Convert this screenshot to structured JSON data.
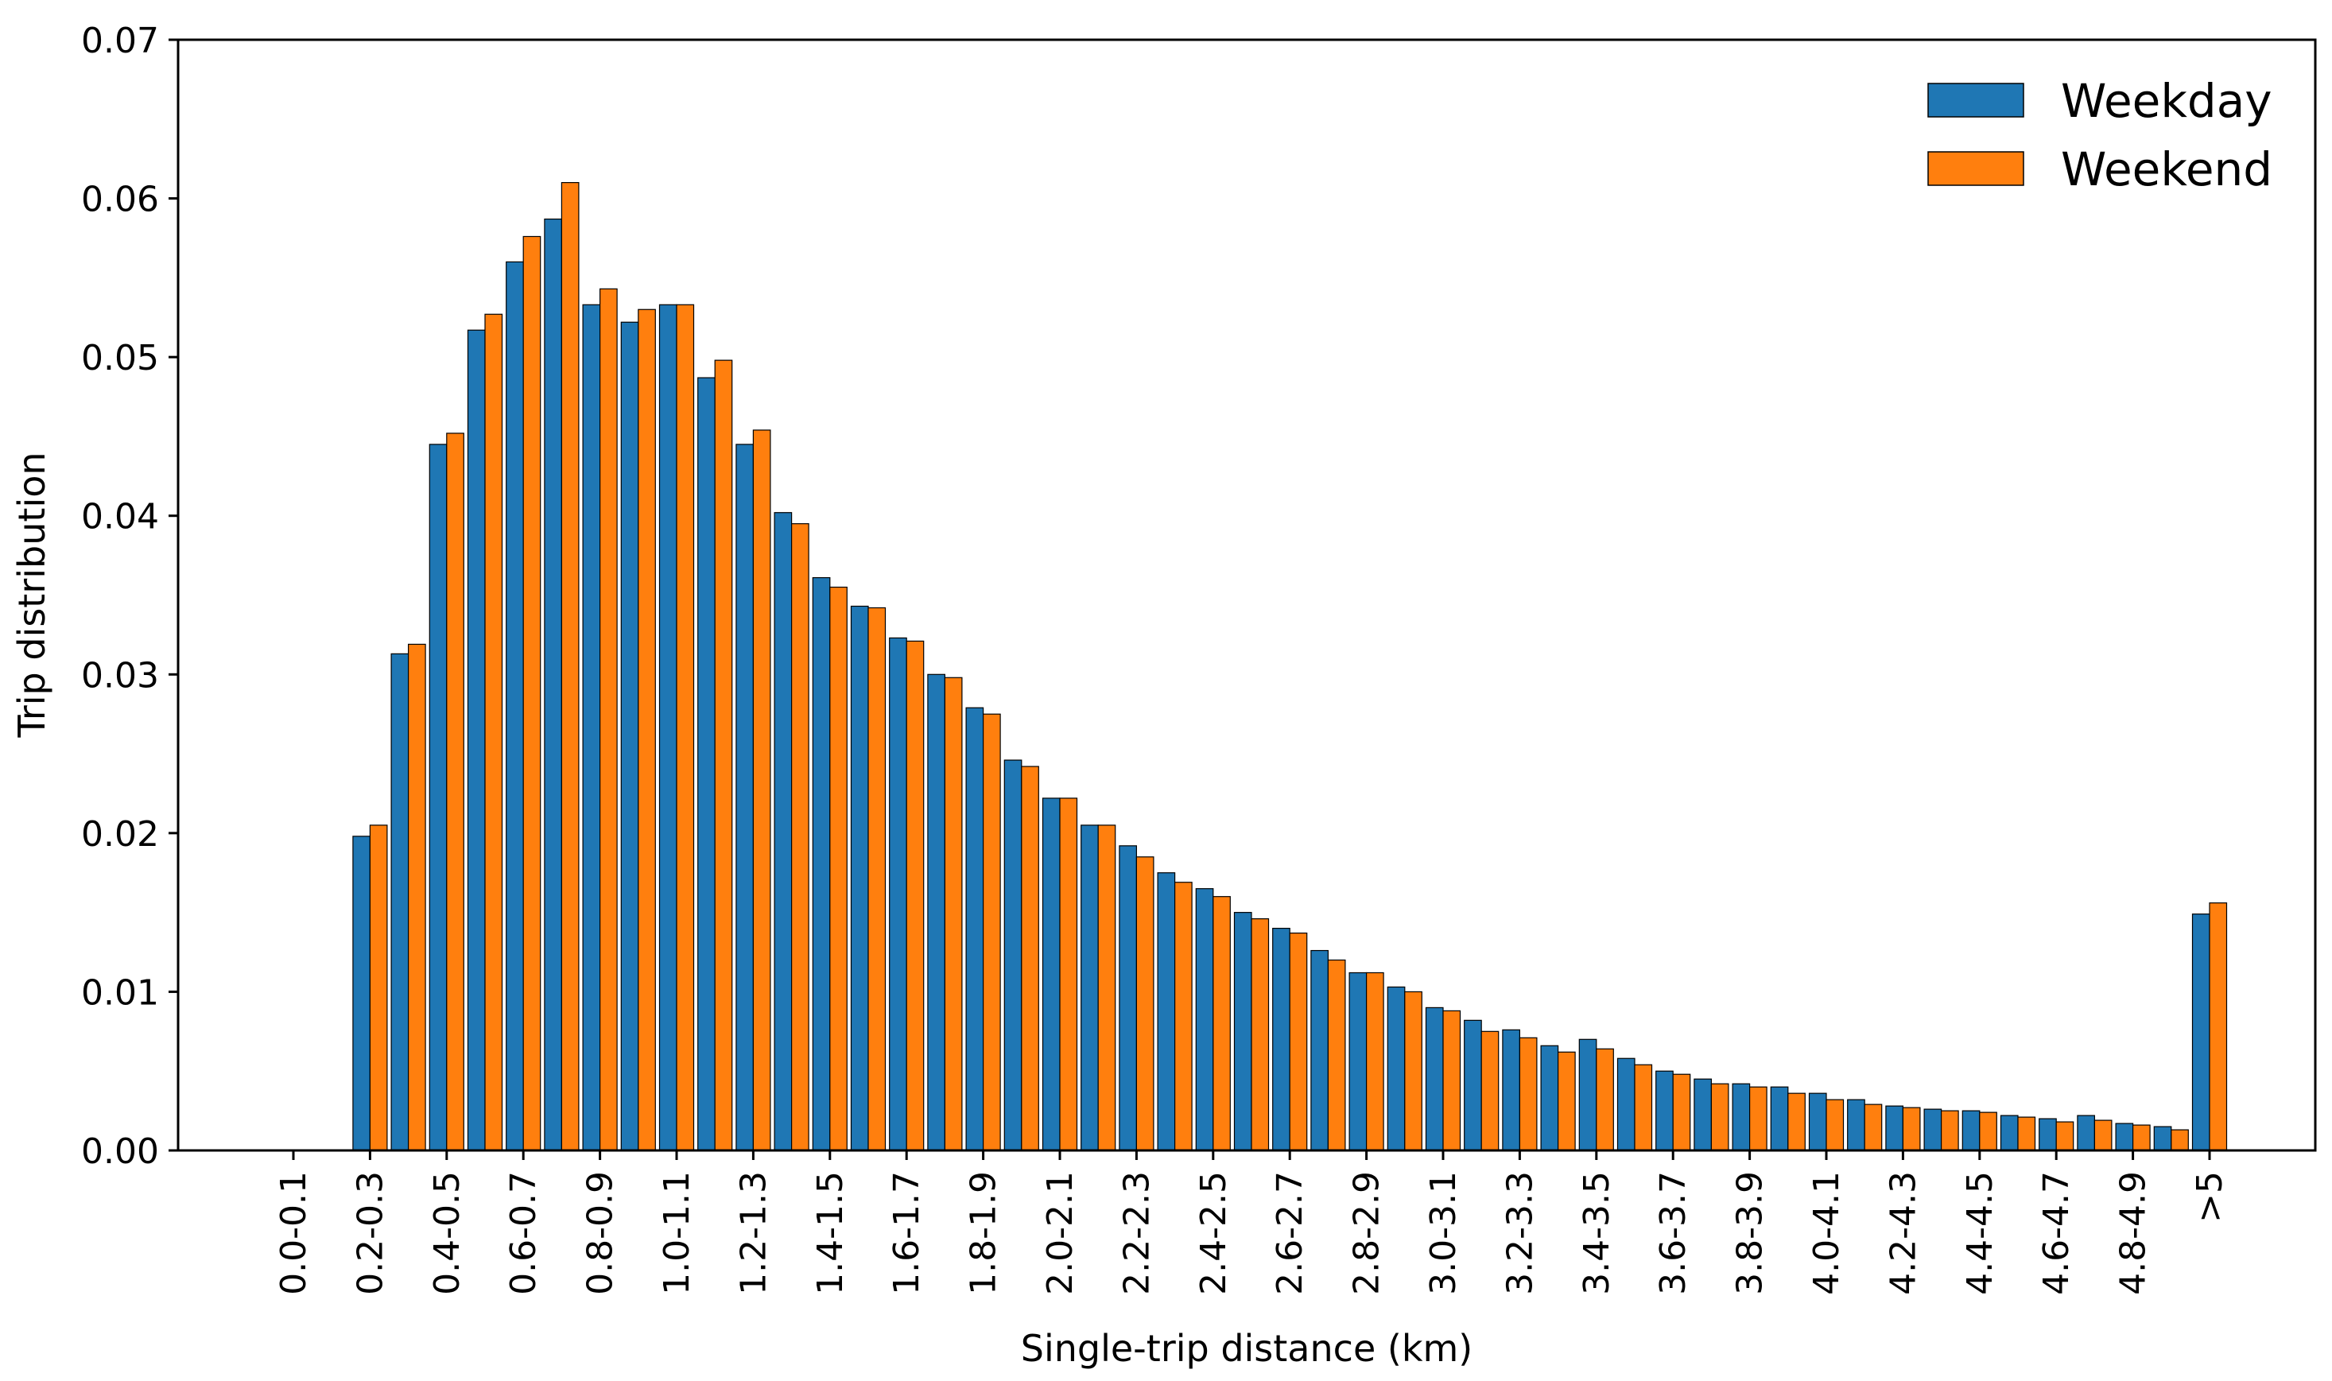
{
  "chart_data": {
    "type": "bar",
    "title": "",
    "xlabel": "Single-trip distance (km)",
    "ylabel": "Trip distribution",
    "ylim": [
      0,
      0.07
    ],
    "yticks": [
      "0.00",
      "0.01",
      "0.02",
      "0.03",
      "0.04",
      "0.05",
      "0.06",
      "0.07"
    ],
    "xtick_labels": [
      "0.0-0.1",
      "0.2-0.3",
      "0.4-0.5",
      "0.6-0.7",
      "0.8-0.9",
      "1.0-1.1",
      "1.2-1.3",
      "1.4-1.5",
      "1.6-1.7",
      "1.8-1.9",
      "2.0-2.1",
      "2.2-2.3",
      "2.4-2.5",
      "2.6-2.7",
      "2.8-2.9",
      "3.0-3.1",
      "3.2-3.3",
      "3.4-3.5",
      "3.6-3.7",
      "3.8-3.9",
      "4.0-4.1",
      "4.2-4.3",
      "4.4-4.5",
      "4.6-4.7",
      "4.8-4.9",
      ">5"
    ],
    "categories": [
      "0.0-0.1",
      "0.1-0.2",
      "0.2-0.3",
      "0.3-0.4",
      "0.4-0.5",
      "0.5-0.6",
      "0.6-0.7",
      "0.7-0.8",
      "0.8-0.9",
      "0.9-1.0",
      "1.0-1.1",
      "1.1-1.2",
      "1.2-1.3",
      "1.3-1.4",
      "1.4-1.5",
      "1.5-1.6",
      "1.6-1.7",
      "1.7-1.8",
      "1.8-1.9",
      "1.9-2.0",
      "2.0-2.1",
      "2.1-2.2",
      "2.2-2.3",
      "2.3-2.4",
      "2.4-2.5",
      "2.5-2.6",
      "2.6-2.7",
      "2.7-2.8",
      "2.8-2.9",
      "2.9-3.0",
      "3.0-3.1",
      "3.1-3.2",
      "3.2-3.3",
      "3.3-3.4",
      "3.4-3.5",
      "3.5-3.6",
      "3.6-3.7",
      "3.7-3.8",
      "3.8-3.9",
      "3.9-4.0",
      "4.0-4.1",
      "4.1-4.2",
      "4.2-4.3",
      "4.3-4.4",
      "4.4-4.5",
      "4.5-4.6",
      "4.6-4.7",
      "4.7-4.8",
      "4.8-4.9",
      "4.9-5.0",
      ">5"
    ],
    "series": [
      {
        "name": "Weekday",
        "color": "#1f77b4",
        "values": [
          0.0,
          0.0,
          0.0198,
          0.0313,
          0.0445,
          0.0517,
          0.056,
          0.0587,
          0.0533,
          0.0522,
          0.0533,
          0.0487,
          0.0445,
          0.0402,
          0.0361,
          0.0343,
          0.0323,
          0.03,
          0.0279,
          0.0246,
          0.0222,
          0.0205,
          0.0192,
          0.0175,
          0.0165,
          0.015,
          0.014,
          0.0126,
          0.0112,
          0.0103,
          0.009,
          0.0082,
          0.0076,
          0.0066,
          0.007,
          0.0058,
          0.005,
          0.0045,
          0.0042,
          0.004,
          0.0036,
          0.0032,
          0.0028,
          0.0026,
          0.0025,
          0.0022,
          0.002,
          0.0022,
          0.0017,
          0.0015,
          0.0149
        ]
      },
      {
        "name": "Weekend",
        "color": "#ff7f0e",
        "values": [
          0.0,
          0.0,
          0.0205,
          0.0319,
          0.0452,
          0.0527,
          0.0576,
          0.061,
          0.0543,
          0.053,
          0.0533,
          0.0498,
          0.0454,
          0.0395,
          0.0355,
          0.0342,
          0.0321,
          0.0298,
          0.0275,
          0.0242,
          0.0222,
          0.0205,
          0.0185,
          0.0169,
          0.016,
          0.0146,
          0.0137,
          0.012,
          0.0112,
          0.01,
          0.0088,
          0.0075,
          0.0071,
          0.0062,
          0.0064,
          0.0054,
          0.0048,
          0.0042,
          0.004,
          0.0036,
          0.0032,
          0.0029,
          0.0027,
          0.0025,
          0.0024,
          0.0021,
          0.0018,
          0.0019,
          0.0016,
          0.0013,
          0.0156
        ]
      }
    ],
    "legend": {
      "position": "top-right",
      "entries": [
        "Weekday",
        "Weekend"
      ]
    },
    "grid": false
  }
}
